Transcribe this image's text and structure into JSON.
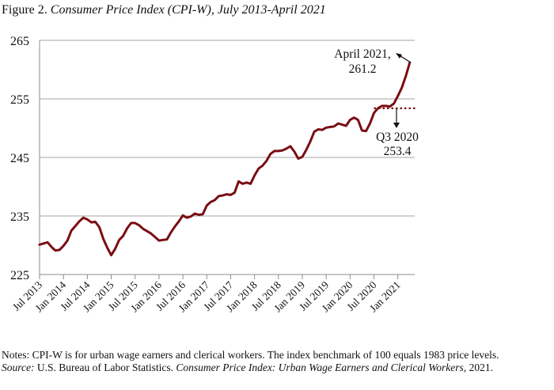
{
  "figure": {
    "label": "Figure 2.",
    "title": "Consumer Price Index (CPI-W), July 2013-April 2021"
  },
  "notes": {
    "text": "Notes: CPI-W is for urban wage earners and clerical workers.  The index benchmark of 100 equals 1983 price levels.",
    "source_label": "Source:",
    "source_text": " U.S. Bureau of Labor Statistics. ",
    "source_title": "Consumer Price Index: Urban Wage Earners and Clerical Workers",
    "source_year": ", 2021."
  },
  "colors": {
    "line": "#7a0e14",
    "grid": "#a6a6a6",
    "axis": "#8c8c8c"
  },
  "chart_data": {
    "type": "line",
    "title": "Consumer Price Index (CPI-W), July 2013-April 2021",
    "xlabel": "",
    "ylabel": "",
    "ylim": [
      225,
      265
    ],
    "yticks": [
      225,
      235,
      245,
      255,
      265
    ],
    "grid": true,
    "legend": null,
    "xtick_labels": [
      "Jul 2013",
      "Jan 2014",
      "Jul 2014",
      "Jan 2015",
      "Jul 2015",
      "Jan 2016",
      "Jul 2016",
      "Jan 2017",
      "Jul 2017",
      "Jan 2018",
      "Jul 2018",
      "Jan 2019",
      "Jul 2019",
      "Jan 2020",
      "Jul 2020",
      "Jan 2021"
    ],
    "series": [
      {
        "name": "CPI-W",
        "start": "Jul 2013",
        "frequency": "monthly",
        "values": [
          230.1,
          230.3,
          230.5,
          229.7,
          229.1,
          229.2,
          229.9,
          230.8,
          232.5,
          233.3,
          234.1,
          234.7,
          234.4,
          233.9,
          234.0,
          233.1,
          231.1,
          229.6,
          228.3,
          229.4,
          230.9,
          231.6,
          232.9,
          233.8,
          233.8,
          233.4,
          232.8,
          232.4,
          232.0,
          231.4,
          230.8,
          230.9,
          231.0,
          232.2,
          233.2,
          234.1,
          235.1,
          234.7,
          234.9,
          235.4,
          235.2,
          235.3,
          236.8,
          237.4,
          237.7,
          238.4,
          238.5,
          238.7,
          238.6,
          239.0,
          240.9,
          240.5,
          240.7,
          240.5,
          241.9,
          243.1,
          243.6,
          244.4,
          245.6,
          246.1,
          246.1,
          246.2,
          246.5,
          246.9,
          246.0,
          244.8,
          245.1,
          246.3,
          247.7,
          249.4,
          249.8,
          249.7,
          250.1,
          250.2,
          250.3,
          250.8,
          250.6,
          250.4,
          251.4,
          251.8,
          251.4,
          249.6,
          249.5,
          250.8,
          252.6,
          253.4,
          253.8,
          253.8,
          253.7,
          254.2,
          255.5,
          256.9,
          258.9,
          261.2
        ]
      }
    ],
    "annotations": [
      {
        "text": "April 2021, 261.2",
        "x": "Apr 2021",
        "y": 261.2
      },
      {
        "text": "Q3 2020 253.4",
        "x": "Q3 2020",
        "y": 253.4,
        "style": "dotted reference line"
      }
    ]
  },
  "annotations": {
    "april_line1": "April 2021,",
    "april_line2": "261.2",
    "q3_line1": "Q3 2020",
    "q3_line2": "253.4"
  }
}
